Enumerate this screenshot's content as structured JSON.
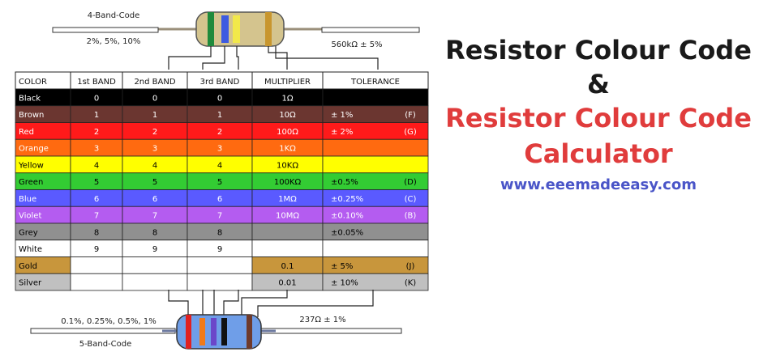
{
  "title": {
    "line1": "Resistor Colour Code",
    "amp": "&",
    "line2": "Resistor Colour Code",
    "line3": "Calculator",
    "url": "www.eeemadeeasy.com",
    "colors": {
      "dark": "#1a1a1a",
      "accent": "#e03c3c",
      "link": "#4a55c8"
    }
  },
  "four_band": {
    "label": "4-Band-Code",
    "tolerance_note": "2%, 5%, 10%",
    "example_value": "560kΩ ± 5%",
    "bands": [
      "#1f8a3c",
      "#3d5be0",
      "#f2e84a",
      "#c8962e"
    ]
  },
  "five_band": {
    "label": "5-Band-Code",
    "tolerance_note": "0.1%, 0.25%, 0.5%, 1%",
    "example_value": "237Ω ± 1%",
    "bands": [
      "#e02020",
      "#f07a18",
      "#6b47c9",
      "#111111",
      "#6e3a2c"
    ]
  },
  "table": {
    "headers": [
      "COLOR",
      "1st BAND",
      "2nd BAND",
      "3rd BAND",
      "MULTIPLIER",
      "TOLERANCE"
    ],
    "rows": [
      {
        "color": "Black",
        "bg": "#000000",
        "fg": "#ffffff",
        "b1": "0",
        "b2": "0",
        "b3": "0",
        "mult": "1Ω",
        "tol": "",
        "code": ""
      },
      {
        "color": "Brown",
        "bg": "#6b3630",
        "fg": "#ffffff",
        "b1": "1",
        "b2": "1",
        "b3": "1",
        "mult": "10Ω",
        "tol": "±   1%",
        "code": "(F)"
      },
      {
        "color": "Red",
        "bg": "#ff1a1a",
        "fg": "#ffffff",
        "b1": "2",
        "b2": "2",
        "b3": "2",
        "mult": "100Ω",
        "tol": "±   2%",
        "code": "(G)"
      },
      {
        "color": "Orange",
        "bg": "#ff6a10",
        "fg": "#ffffff",
        "b1": "3",
        "b2": "3",
        "b3": "3",
        "mult": "1KΩ",
        "tol": "",
        "code": ""
      },
      {
        "color": "Yellow",
        "bg": "#ffff00",
        "fg": "#000000",
        "b1": "4",
        "b2": "4",
        "b3": "4",
        "mult": "10KΩ",
        "tol": "",
        "code": ""
      },
      {
        "color": "Green",
        "bg": "#33cc33",
        "fg": "#000000",
        "b1": "5",
        "b2": "5",
        "b3": "5",
        "mult": "100KΩ",
        "tol": "±0.5%",
        "code": "(D)"
      },
      {
        "color": "Blue",
        "bg": "#5a5aff",
        "fg": "#ffffff",
        "b1": "6",
        "b2": "6",
        "b3": "6",
        "mult": "1MΩ",
        "tol": "±0.25%",
        "code": "(C)"
      },
      {
        "color": "Violet",
        "bg": "#b45cf0",
        "fg": "#ffffff",
        "b1": "7",
        "b2": "7",
        "b3": "7",
        "mult": "10MΩ",
        "tol": "±0.10%",
        "code": "(B)"
      },
      {
        "color": "Grey",
        "bg": "#909090",
        "fg": "#000000",
        "b1": "8",
        "b2": "8",
        "b3": "8",
        "mult": "",
        "tol": "±0.05%",
        "code": ""
      },
      {
        "color": "White",
        "bg": "#ffffff",
        "fg": "#000000",
        "b1": "9",
        "b2": "9",
        "b3": "9",
        "mult": "",
        "tol": "",
        "code": ""
      },
      {
        "color": "Gold",
        "bg": "#c8963c",
        "fg": "#000000",
        "b1": "",
        "b2": "",
        "b3": "",
        "mult": "0.1",
        "tol": "±   5%",
        "code": "(J)",
        "blank_digits": true
      },
      {
        "color": "Silver",
        "bg": "#c0c0c0",
        "fg": "#000000",
        "b1": "",
        "b2": "",
        "b3": "",
        "mult": "0.01",
        "tol": "±  10%",
        "code": "(K)",
        "blank_digits": true
      }
    ]
  }
}
